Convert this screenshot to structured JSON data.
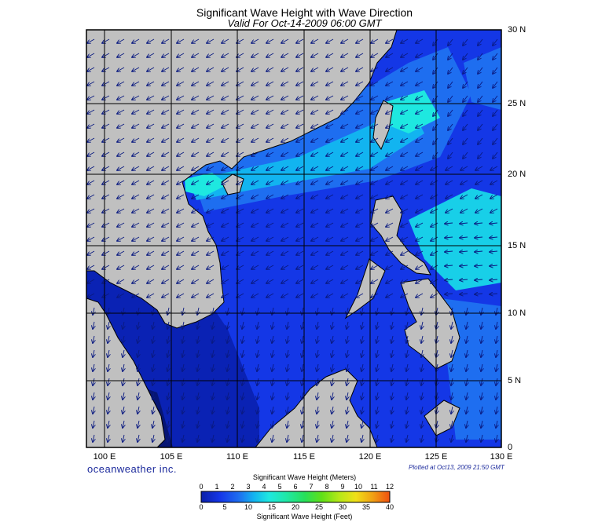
{
  "title": "Significant Wave Height with Wave Direction",
  "subtitle": "Valid For Oct-14-2009 06:00 GMT",
  "lat_labels": [
    "30 N",
    "25 N",
    "20 N",
    "15 N",
    "10 N",
    "5 N",
    "0"
  ],
  "lon_labels": [
    "100 E",
    "105 E",
    "110 E",
    "115 E",
    "120 E",
    "125 E",
    "130 E"
  ],
  "brand": "oceanweather inc.",
  "plotted": "Plotted at Oct13, 2009 21:50 GMT",
  "colorbar": {
    "title_top": "Significant Wave Height (Meters)",
    "title_bottom": "Significant Wave Height (Feet)",
    "meter_ticks": [
      "0",
      "1",
      "2",
      "3",
      "4",
      "5",
      "6",
      "7",
      "8",
      "9",
      "10",
      "11",
      "12"
    ],
    "feet_ticks": [
      "0",
      "5",
      "10",
      "15",
      "20",
      "25",
      "30",
      "35",
      "40"
    ],
    "colors": [
      "#0a1ea8",
      "#1436e8",
      "#1e6ef0",
      "#12b4f0",
      "#1ee8e0",
      "#20e8a8",
      "#28e05a",
      "#60e018",
      "#b4e818",
      "#f0e018",
      "#f0a014",
      "#f05010"
    ]
  },
  "land_color": "#c0c0c0",
  "ocean_base_color": "#1437e6"
}
